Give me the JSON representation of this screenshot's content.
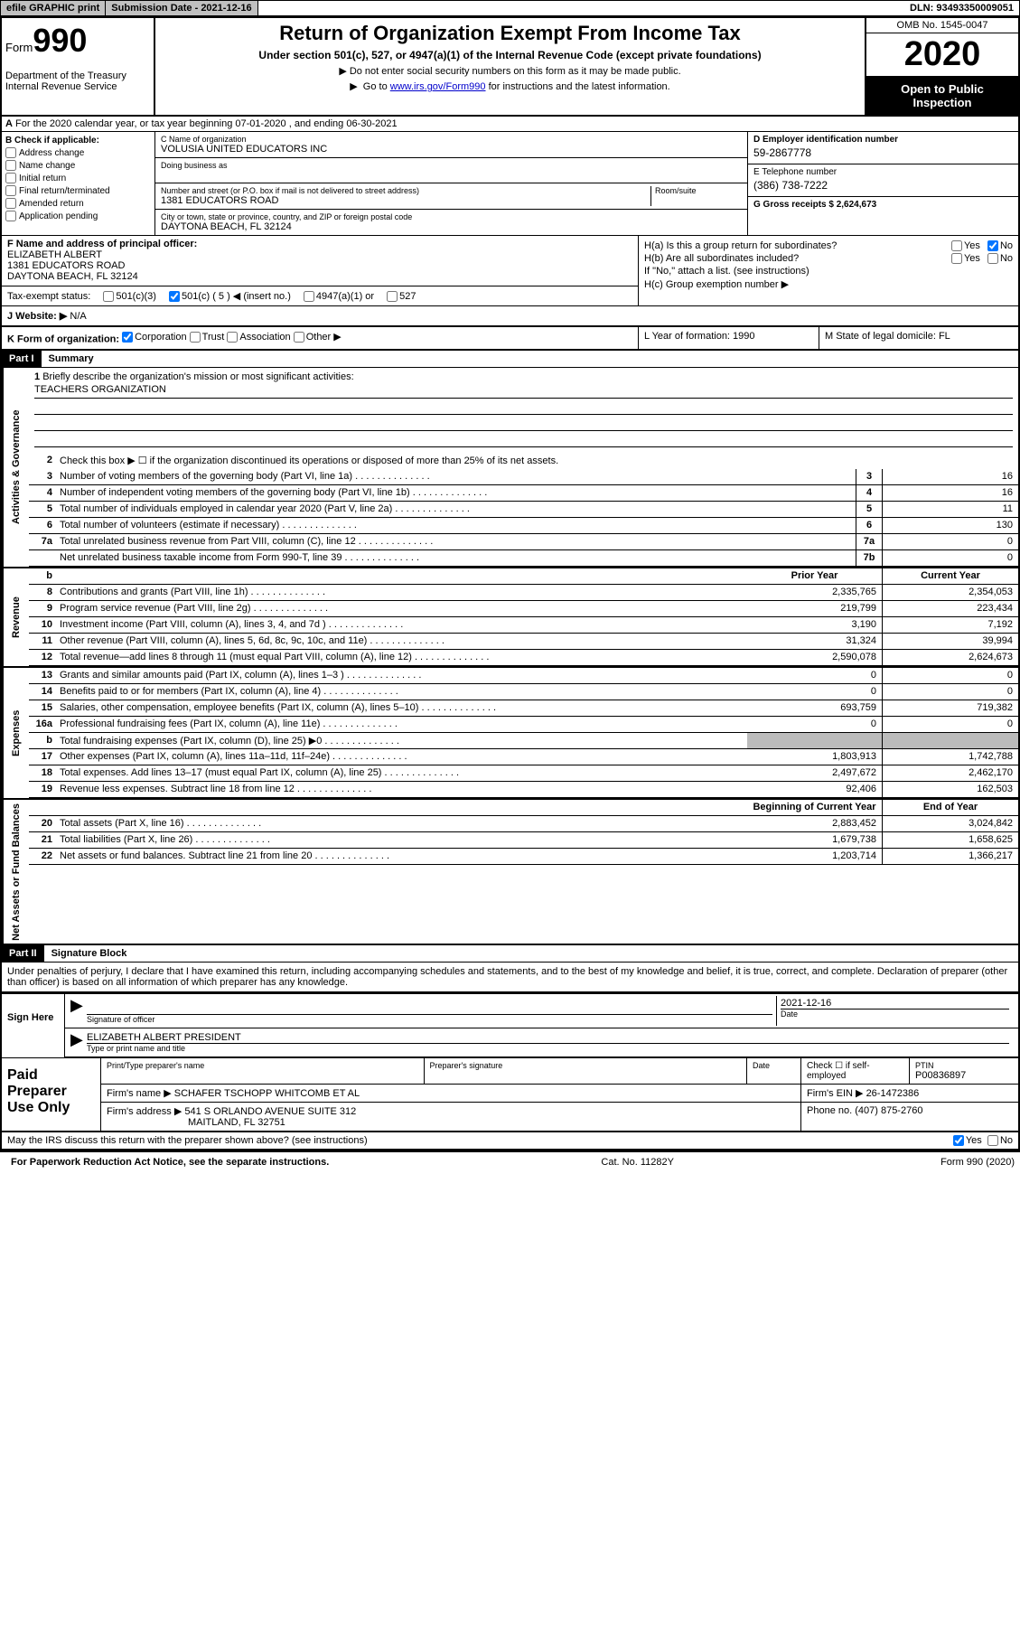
{
  "topbar": {
    "efile": "efile GRAPHIC print",
    "submission": "Submission Date - 2021-12-16",
    "dln": "DLN: 93493350009051"
  },
  "header": {
    "form_label": "Form",
    "form_number": "990",
    "dept": "Department of the Treasury\nInternal Revenue Service",
    "title": "Return of Organization Exempt From Income Tax",
    "subtitle": "Under section 501(c), 527, or 4947(a)(1) of the Internal Revenue Code (except private foundations)",
    "note1": "Do not enter social security numbers on this form as it may be made public.",
    "note2_pre": "Go to ",
    "note2_link": "www.irs.gov/Form990",
    "note2_post": " for instructions and the latest information.",
    "omb": "OMB No. 1545-0047",
    "year": "2020",
    "open": "Open to Public Inspection"
  },
  "rowA": {
    "text": "For the 2020 calendar year, or tax year beginning 07-01-2020   , and ending 06-30-2021"
  },
  "boxB": {
    "label": "B Check if applicable:",
    "opts": [
      "Address change",
      "Name change",
      "Initial return",
      "Final return/terminated",
      "Amended return",
      "Application pending"
    ]
  },
  "boxC": {
    "name_label": "C Name of organization",
    "name": "VOLUSIA UNITED EDUCATORS INC",
    "dba_label": "Doing business as",
    "dba": "",
    "addr_label": "Number and street (or P.O. box if mail is not delivered to street address)",
    "room_label": "Room/suite",
    "addr": "1381 EDUCATORS ROAD",
    "city_label": "City or town, state or province, country, and ZIP or foreign postal code",
    "city": "DAYTONA BEACH, FL  32124"
  },
  "boxD": {
    "ein_label": "D Employer identification number",
    "ein": "59-2867778",
    "phone_label": "E Telephone number",
    "phone": "(386) 738-7222",
    "gross_label": "G Gross receipts $ 2,624,673"
  },
  "boxF": {
    "label": "F  Name and address of principal officer:",
    "name": "ELIZABETH ALBERT",
    "addr": "1381 EDUCATORS ROAD",
    "city": "DAYTONA BEACH, FL  32124"
  },
  "boxH": {
    "a_label": "H(a)  Is this a group return for subordinates?",
    "b_label": "H(b)  Are all subordinates included?",
    "b_note": "If \"No,\" attach a list. (see instructions)",
    "c_label": "H(c)  Group exemption number ▶"
  },
  "taxStatus": {
    "label": "Tax-exempt status:",
    "opt1": "501(c)(3)",
    "opt2": "501(c) ( 5 ) ◀ (insert no.)",
    "opt3": "4947(a)(1) or",
    "opt4": "527"
  },
  "website": {
    "label": "J   Website: ▶",
    "val": "N/A"
  },
  "rowK": {
    "label": "K Form of organization:",
    "opts": [
      "Corporation",
      "Trust",
      "Association",
      "Other ▶"
    ],
    "l_label": "L Year of formation: 1990",
    "m_label": "M State of legal domicile: FL"
  },
  "part1": {
    "header": "Part I",
    "title": "Summary",
    "q1": "Briefly describe the organization's mission or most significant activities:",
    "mission": "TEACHERS ORGANIZATION",
    "q2": "Check this box ▶ ☐  if the organization discontinued its operations or disposed of more than 25% of its net assets.",
    "lines_gov": [
      {
        "n": "3",
        "d": "Number of voting members of the governing body (Part VI, line 1a)",
        "c": "3",
        "v": "16"
      },
      {
        "n": "4",
        "d": "Number of independent voting members of the governing body (Part VI, line 1b)",
        "c": "4",
        "v": "16"
      },
      {
        "n": "5",
        "d": "Total number of individuals employed in calendar year 2020 (Part V, line 2a)",
        "c": "5",
        "v": "11"
      },
      {
        "n": "6",
        "d": "Total number of volunteers (estimate if necessary)",
        "c": "6",
        "v": "130"
      },
      {
        "n": "7a",
        "d": "Total unrelated business revenue from Part VIII, column (C), line 12",
        "c": "7a",
        "v": "0"
      },
      {
        "n": "",
        "d": "Net unrelated business taxable income from Form 990-T, line 39",
        "c": "7b",
        "v": "0"
      }
    ],
    "col_headers_rev": {
      "l": "b",
      "c1": "Prior Year",
      "c2": "Current Year"
    },
    "lines_rev": [
      {
        "n": "8",
        "d": "Contributions and grants (Part VIII, line 1h)",
        "p": "2,335,765",
        "c": "2,354,053"
      },
      {
        "n": "9",
        "d": "Program service revenue (Part VIII, line 2g)",
        "p": "219,799",
        "c": "223,434"
      },
      {
        "n": "10",
        "d": "Investment income (Part VIII, column (A), lines 3, 4, and 7d )",
        "p": "3,190",
        "c": "7,192"
      },
      {
        "n": "11",
        "d": "Other revenue (Part VIII, column (A), lines 5, 6d, 8c, 9c, 10c, and 11e)",
        "p": "31,324",
        "c": "39,994"
      },
      {
        "n": "12",
        "d": "Total revenue—add lines 8 through 11 (must equal Part VIII, column (A), line 12)",
        "p": "2,590,078",
        "c": "2,624,673"
      }
    ],
    "lines_exp": [
      {
        "n": "13",
        "d": "Grants and similar amounts paid (Part IX, column (A), lines 1–3 )",
        "p": "0",
        "c": "0"
      },
      {
        "n": "14",
        "d": "Benefits paid to or for members (Part IX, column (A), line 4)",
        "p": "0",
        "c": "0"
      },
      {
        "n": "15",
        "d": "Salaries, other compensation, employee benefits (Part IX, column (A), lines 5–10)",
        "p": "693,759",
        "c": "719,382"
      },
      {
        "n": "16a",
        "d": "Professional fundraising fees (Part IX, column (A), line 11e)",
        "p": "0",
        "c": "0"
      },
      {
        "n": "b",
        "d": "Total fundraising expenses (Part IX, column (D), line 25) ▶0",
        "p": "",
        "c": "",
        "gray": true
      },
      {
        "n": "17",
        "d": "Other expenses (Part IX, column (A), lines 11a–11d, 11f–24e)",
        "p": "1,803,913",
        "c": "1,742,788"
      },
      {
        "n": "18",
        "d": "Total expenses. Add lines 13–17 (must equal Part IX, column (A), line 25)",
        "p": "2,497,672",
        "c": "2,462,170"
      },
      {
        "n": "19",
        "d": "Revenue less expenses. Subtract line 18 from line 12",
        "p": "92,406",
        "c": "162,503"
      }
    ],
    "col_headers_net": {
      "c1": "Beginning of Current Year",
      "c2": "End of Year"
    },
    "lines_net": [
      {
        "n": "20",
        "d": "Total assets (Part X, line 16)",
        "p": "2,883,452",
        "c": "3,024,842"
      },
      {
        "n": "21",
        "d": "Total liabilities (Part X, line 26)",
        "p": "1,679,738",
        "c": "1,658,625"
      },
      {
        "n": "22",
        "d": "Net assets or fund balances. Subtract line 21 from line 20",
        "p": "1,203,714",
        "c": "1,366,217"
      }
    ],
    "side_gov": "Activities & Governance",
    "side_rev": "Revenue",
    "side_exp": "Expenses",
    "side_net": "Net Assets or Fund Balances"
  },
  "part2": {
    "header": "Part II",
    "title": "Signature Block",
    "perjury": "Under penalties of perjury, I declare that I have examined this return, including accompanying schedules and statements, and to the best of my knowledge and belief, it is true, correct, and complete. Declaration of preparer (other than officer) is based on all information of which preparer has any knowledge.",
    "sign_here": "Sign Here",
    "sig_officer": "Signature of officer",
    "date": "Date",
    "date_val": "2021-12-16",
    "officer_name": "ELIZABETH ALBERT PRESIDENT",
    "type_name": "Type or print name and title",
    "paid": "Paid Preparer Use Only",
    "prep_name_label": "Print/Type preparer's name",
    "prep_sig_label": "Preparer's signature",
    "prep_date_label": "Date",
    "prep_check": "Check ☐ if self-employed",
    "ptin_label": "PTIN",
    "ptin": "P00836897",
    "firm_name_label": "Firm's name    ▶",
    "firm_name": "SCHAFER TSCHOPP WHITCOMB ET AL",
    "firm_ein_label": "Firm's EIN ▶",
    "firm_ein": "26-1472386",
    "firm_addr_label": "Firm's address ▶",
    "firm_addr": "541 S ORLANDO AVENUE SUITE 312",
    "firm_city": "MAITLAND, FL  32751",
    "firm_phone_label": "Phone no.",
    "firm_phone": "(407) 875-2760",
    "discuss": "May the IRS discuss this return with the preparer shown above? (see instructions)",
    "paperwork": "For Paperwork Reduction Act Notice, see the separate instructions.",
    "catno": "Cat. No. 11282Y",
    "formfoot": "Form 990 (2020)"
  }
}
